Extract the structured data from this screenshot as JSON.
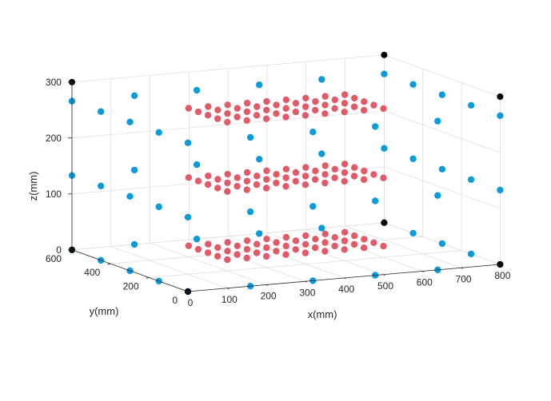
{
  "chart_data": {
    "type": "scatter",
    "projection": "3d",
    "title": "",
    "xlabel": "x(mm)",
    "ylabel": "y(mm)",
    "zlabel": "z(mm)",
    "xlim": [
      0,
      800
    ],
    "ylim": [
      0,
      600
    ],
    "zlim": [
      0,
      300
    ],
    "xticks": [
      "0",
      "100",
      "200",
      "300",
      "400",
      "500",
      "600",
      "700",
      "800"
    ],
    "yticks": [
      "0",
      "200",
      "400",
      "600"
    ],
    "zticks": [
      "0",
      "100",
      "200",
      "300"
    ],
    "grid": true,
    "legend": "none",
    "colors": {
      "outer": "#0c9bd9",
      "inner": "#e05a68",
      "corner": "#000000"
    },
    "series": [
      {
        "role": "outer",
        "color": "#0c9bd9",
        "grid_x": [
          0,
          160,
          320,
          480,
          640,
          800
        ],
        "grid_y": [
          0,
          150,
          300,
          450,
          600
        ],
        "z_levels": [
          0,
          133,
          266
        ],
        "exclude_box": {
          "x": [
            160,
            640
          ],
          "y": [
            150,
            450
          ]
        }
      },
      {
        "role": "inner",
        "color": "#e05a68",
        "grid_x": [
          200,
          250,
          300,
          350,
          400,
          450,
          500,
          550,
          600
        ],
        "grid_y": [
          200,
          250,
          300,
          350,
          400
        ],
        "z_levels": [
          20,
          142,
          266
        ]
      },
      {
        "role": "corner",
        "color": "#000000",
        "points": [
          [
            0,
            0,
            0
          ],
          [
            0,
            600,
            0
          ],
          [
            800,
            0,
            0
          ],
          [
            800,
            600,
            0
          ],
          [
            0,
            600,
            300
          ],
          [
            800,
            0,
            300
          ],
          [
            800,
            600,
            300
          ]
        ]
      }
    ]
  }
}
